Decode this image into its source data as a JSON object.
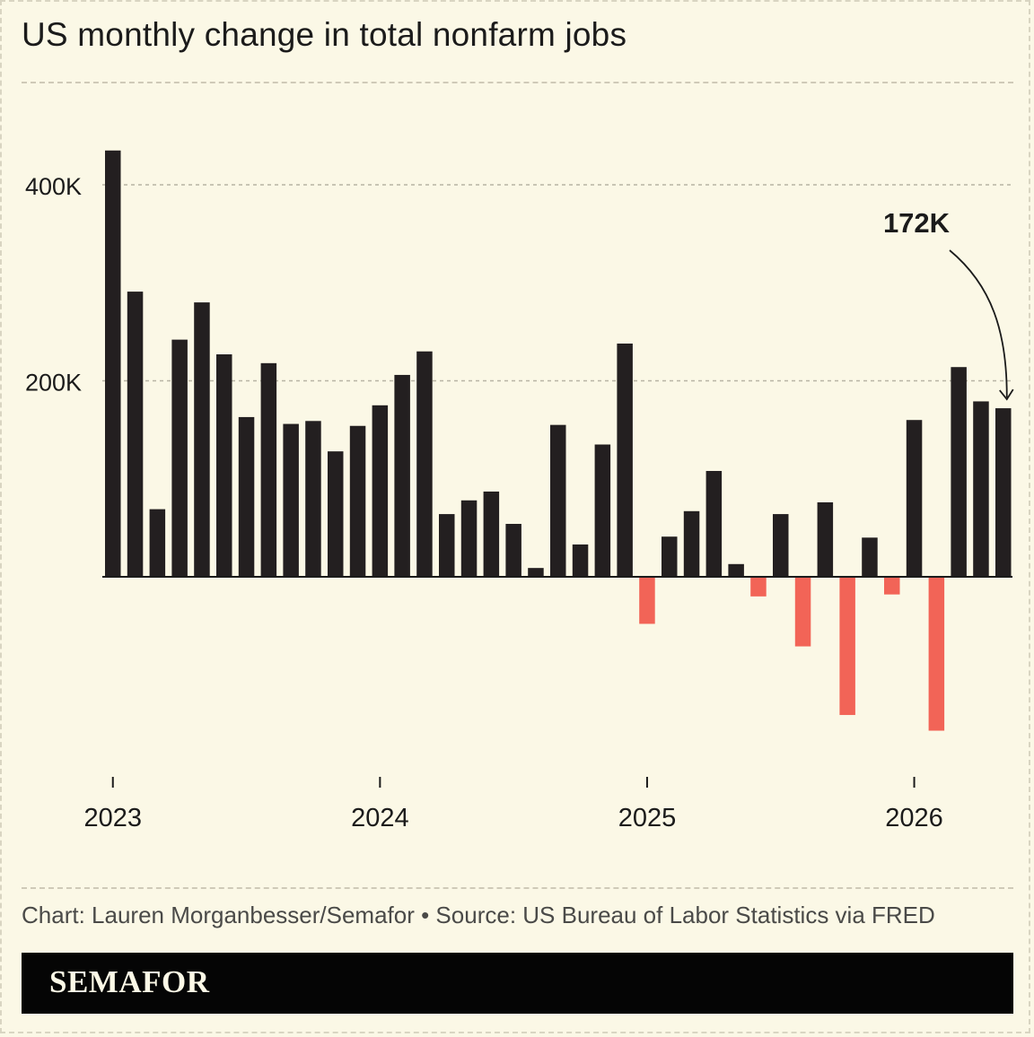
{
  "title": "US monthly change in total nonfarm jobs",
  "credit": "Chart: Lauren Morganbesser/Semafor • Source: US Bureau of Labor Statistics via FRED",
  "brand": "SEMAFOR",
  "colors": {
    "background": "#fbf8e6",
    "positive": "#231f20",
    "negative": "#f26457",
    "grid": "#b8b4a4"
  },
  "chart_data": {
    "type": "bar",
    "title": "US monthly change in total nonfarm jobs",
    "xlabel": "",
    "ylabel": "",
    "ylim": [
      -210000,
      500000
    ],
    "yticks": [
      {
        "value": 400000,
        "label": "400K"
      },
      {
        "value": 200000,
        "label": "200K"
      }
    ],
    "xticks": [
      {
        "index": 0,
        "label": "2023"
      },
      {
        "index": 12,
        "label": "2024"
      },
      {
        "index": 24,
        "label": "2025"
      },
      {
        "index": 36,
        "label": "2026"
      }
    ],
    "grid": true,
    "categories": [
      "2023-01",
      "2023-02",
      "2023-03",
      "2023-04",
      "2023-05",
      "2023-06",
      "2023-07",
      "2023-08",
      "2023-09",
      "2023-10",
      "2023-11",
      "2023-12",
      "2024-01",
      "2024-02",
      "2024-03",
      "2024-04",
      "2024-05",
      "2024-06",
      "2024-07",
      "2024-08",
      "2024-09",
      "2024-10",
      "2024-11",
      "2024-12",
      "2025-01",
      "2025-02",
      "2025-03",
      "2025-04",
      "2025-05",
      "2025-06",
      "2025-07",
      "2025-08",
      "2025-09",
      "2025-10",
      "2025-11",
      "2025-12",
      "2026-01",
      "2026-02",
      "2026-03",
      "2026-04",
      "2026-05"
    ],
    "values": [
      435000,
      291000,
      69000,
      242000,
      280000,
      227000,
      163000,
      218000,
      156000,
      159000,
      128000,
      154000,
      175000,
      206000,
      230000,
      64000,
      78000,
      87000,
      54000,
      9000,
      155000,
      33000,
      135000,
      238000,
      -48000,
      41000,
      67000,
      108000,
      13000,
      -20000,
      64000,
      -71000,
      76000,
      -141000,
      40000,
      -18000,
      160000,
      -157000,
      214000,
      179000,
      172000
    ],
    "annotation": {
      "text": "172K",
      "index": 40
    }
  }
}
